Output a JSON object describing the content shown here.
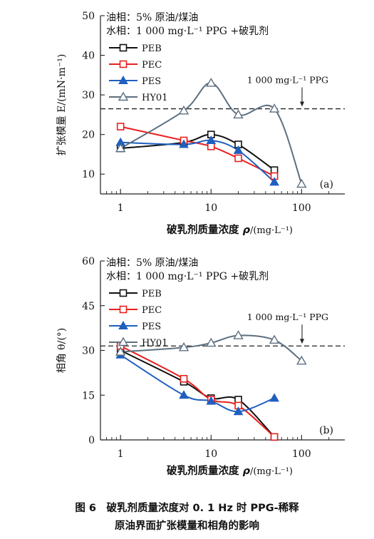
{
  "chart_data": [
    {
      "type": "line",
      "panel_label": "(a)",
      "ylabel": "扩张模量 E/(mN·m⁻¹)",
      "xlabel_main": "破乳剂质量浓度 ",
      "xlabel_sym": "ρ",
      "xlabel_unit": "/(mg·L⁻¹)",
      "x_scale": "log",
      "xlim": [
        0.6,
        300
      ],
      "ylim": [
        5,
        50
      ],
      "xticks": [
        1,
        10,
        100
      ],
      "xtick_labels": [
        "1",
        "10",
        "100"
      ],
      "yticks": [
        10,
        20,
        30,
        40,
        50
      ],
      "ytick_labels": [
        "10",
        "20",
        "30",
        "40",
        "50"
      ],
      "legend": {
        "placement": "top-left",
        "line1": "油相：5% 原油/煤油",
        "line2": "水相：1 000 mg·L⁻¹ PPG +破乳剂"
      },
      "reference": {
        "value": 26.5,
        "label": "1 000 mg·L⁻¹ PPG"
      },
      "series": [
        {
          "name": "PEB",
          "color": "#111111",
          "marker": "square-open",
          "x": [
            1,
            5,
            10,
            20,
            50
          ],
          "y": [
            16.5,
            18,
            20,
            17.5,
            11
          ]
        },
        {
          "name": "PEC",
          "color": "#e8201e",
          "marker": "square-open",
          "x": [
            1,
            5,
            10,
            20,
            50
          ],
          "y": [
            22,
            18.5,
            17,
            14,
            9.5
          ]
        },
        {
          "name": "PES",
          "color": "#1f5fbf",
          "marker": "triangle-filled",
          "x": [
            1,
            5,
            10,
            20,
            50
          ],
          "y": [
            18,
            17.5,
            18.5,
            16,
            8
          ]
        },
        {
          "name": "HY01",
          "color": "#5c6f80",
          "marker": "triangle-open",
          "x": [
            1,
            5,
            10,
            20,
            50,
            100
          ],
          "y": [
            16.5,
            26,
            33,
            25,
            26.5,
            7.5
          ]
        }
      ]
    },
    {
      "type": "line",
      "panel_label": "(b)",
      "ylabel": "相角 θ/(°)",
      "xlabel_main": "破乳剂质量浓度 ",
      "xlabel_sym": "ρ",
      "xlabel_unit": "/(mg·L⁻¹)",
      "x_scale": "log",
      "xlim": [
        0.6,
        300
      ],
      "ylim": [
        0,
        60
      ],
      "xticks": [
        1,
        10,
        100
      ],
      "xtick_labels": [
        "1",
        "10",
        "100"
      ],
      "yticks": [
        0,
        15,
        30,
        45,
        60
      ],
      "ytick_labels": [
        "0",
        "15",
        "30",
        "45",
        "60"
      ],
      "legend": {
        "placement": "top-left",
        "line1": "油相：5% 原油/煤油",
        "line2": "水相：1 000 mg·L⁻¹ PPG +破乳剂"
      },
      "reference": {
        "value": 31.5,
        "label": "1 000 mg·L⁻¹ PPG"
      },
      "series": [
        {
          "name": "PEB",
          "color": "#111111",
          "marker": "square-open",
          "x": [
            1,
            5,
            10,
            20,
            50
          ],
          "y": [
            30,
            19.5,
            14,
            13.5,
            1
          ]
        },
        {
          "name": "PEC",
          "color": "#e8201e",
          "marker": "square-open",
          "x": [
            1,
            5,
            10,
            20,
            50
          ],
          "y": [
            31.5,
            20.5,
            13.5,
            11.5,
            1
          ]
        },
        {
          "name": "PES",
          "color": "#1f5fbf",
          "marker": "triangle-filled",
          "x": [
            1,
            5,
            10,
            20,
            50
          ],
          "y": [
            28.5,
            15,
            13,
            9.5,
            14
          ]
        },
        {
          "name": "HY01",
          "color": "#5c6f80",
          "marker": "triangle-open",
          "x": [
            1,
            5,
            10,
            20,
            50,
            100
          ],
          "y": [
            29.5,
            31,
            32.5,
            35,
            33.5,
            26.5
          ]
        }
      ]
    }
  ],
  "caption": {
    "line1": "图 6　破乳剂质量浓度对 0. 1 Hz 时 PPG-稀释",
    "line2": "原油界面扩张模量和相角的影响"
  }
}
